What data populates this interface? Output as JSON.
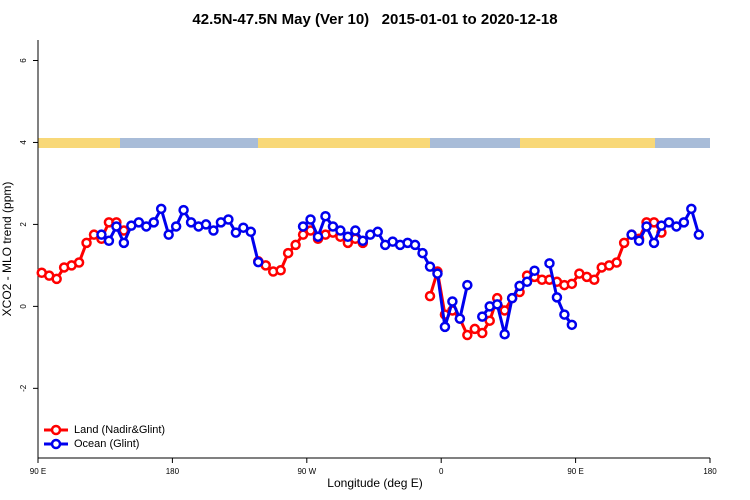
{
  "chart_data": {
    "type": "line",
    "title": "42.5N-47.5N May (Ver 10)   2015-01-01 to 2020-12-18",
    "x_label": "Longitude (deg E)",
    "y_label": "XCO2 - MLO trend (ppm)",
    "x": [
      92.5,
      97.5,
      102.5,
      107.5,
      112.5,
      117.5,
      122.5,
      127.5,
      132.5,
      137.5,
      142.5,
      147.5,
      152.5,
      157.5,
      162.5,
      167.5,
      172.5,
      177.5,
      182.5,
      187.5,
      192.5,
      197.5,
      202.5,
      207.5,
      212.5,
      217.5,
      222.5,
      227.5,
      232.5,
      237.5,
      242.5,
      247.5,
      252.5,
      257.5,
      262.5,
      267.5,
      272.5,
      277.5,
      282.5,
      287.5,
      292.5,
      297.5,
      302.5,
      307.5,
      312.5,
      317.5,
      322.5,
      327.5,
      332.5,
      337.5,
      342.5,
      347.5,
      352.5,
      357.5,
      362.5,
      367.5,
      372.5,
      377.5,
      382.5,
      387.5,
      392.5,
      397.5,
      402.5,
      407.5,
      412.5,
      417.5,
      422.5,
      427.5,
      432.5,
      437.5,
      442.5,
      447.5,
      452.5,
      457.5,
      462.5,
      467.5,
      472.5,
      477.5,
      482.5,
      487.5,
      492.5,
      497.5,
      502.5,
      507.5,
      512.5,
      517.5,
      522.5,
      527.5,
      532.5
    ],
    "series": [
      {
        "name": "Land (Nadir&Glint)",
        "color": "#ff0000",
        "values": [
          0.82,
          0.75,
          0.67,
          0.95,
          1.0,
          1.07,
          1.55,
          1.75,
          1.65,
          2.05,
          2.05,
          1.85,
          null,
          null,
          null,
          null,
          null,
          null,
          null,
          null,
          null,
          null,
          null,
          null,
          null,
          null,
          null,
          null,
          null,
          1.1,
          1.0,
          0.85,
          0.88,
          1.3,
          1.5,
          1.75,
          1.85,
          1.65,
          1.75,
          1.8,
          1.7,
          1.55,
          1.65,
          1.55,
          null,
          null,
          null,
          null,
          null,
          null,
          null,
          null,
          0.25,
          0.85,
          -0.2,
          -0.1,
          -0.3,
          -0.7,
          -0.55,
          -0.65,
          -0.35,
          0.2,
          -0.1,
          0.2,
          0.35,
          0.75,
          0.72,
          0.65,
          0.65,
          0.6,
          0.52,
          0.55,
          0.8,
          0.72,
          0.65,
          0.95,
          1.0,
          1.07,
          1.55,
          1.75,
          1.65,
          2.05,
          2.05,
          1.8,
          null,
          null,
          null,
          null,
          null
        ]
      },
      {
        "name": "Ocean (Glint)",
        "color": "#0000ee",
        "values": [
          null,
          null,
          null,
          null,
          null,
          null,
          null,
          null,
          1.75,
          1.6,
          1.95,
          1.55,
          1.97,
          2.05,
          1.95,
          2.05,
          2.38,
          1.75,
          1.95,
          2.35,
          2.05,
          1.95,
          2.0,
          1.85,
          2.05,
          2.12,
          1.8,
          1.92,
          1.82,
          1.08,
          null,
          null,
          null,
          null,
          null,
          1.95,
          2.12,
          1.7,
          2.2,
          1.95,
          1.85,
          1.7,
          1.85,
          1.6,
          1.75,
          1.82,
          1.5,
          1.58,
          1.5,
          1.55,
          1.5,
          1.3,
          0.97,
          0.8,
          -0.5,
          0.12,
          -0.3,
          0.52,
          null,
          -0.25,
          0.0,
          0.05,
          -0.68,
          0.2,
          0.5,
          0.6,
          0.87,
          null,
          1.05,
          0.22,
          -0.2,
          -0.45,
          null,
          null,
          null,
          null,
          null,
          null,
          null,
          1.75,
          1.6,
          1.95,
          1.55,
          1.97,
          2.05,
          1.95,
          2.05,
          2.38,
          1.75
        ]
      }
    ],
    "xlim": [
      90,
      540
    ],
    "xticks": [
      {
        "value": 90,
        "label": "90 E"
      },
      {
        "value": 180,
        "label": "180"
      },
      {
        "value": 270,
        "label": "90 W"
      },
      {
        "value": 360,
        "label": "0"
      },
      {
        "value": 450,
        "label": "90 E"
      },
      {
        "value": 540,
        "label": "180"
      }
    ],
    "ylim": [
      -3.7,
      6.5
    ],
    "yticks": [
      -2,
      0,
      2,
      4,
      6
    ],
    "legend": "bottom-left"
  }
}
